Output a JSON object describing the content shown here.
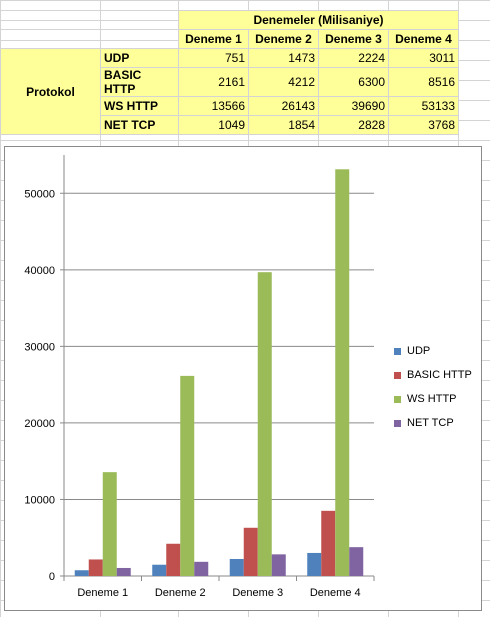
{
  "sheet": {
    "group_header": "Denemeler (Milisaniye)",
    "row_header": "Protokol",
    "columns": [
      "Deneme 1",
      "Deneme 2",
      "Deneme 3",
      "Deneme 4"
    ],
    "rows": [
      {
        "label": "UDP",
        "values": [
          "751",
          "1473",
          "2224",
          "3011"
        ]
      },
      {
        "label": "BASIC HTTP",
        "values": [
          "2161",
          "4212",
          "6300",
          "8516"
        ]
      },
      {
        "label": "WS HTTP",
        "values": [
          "13566",
          "26143",
          "39690",
          "53133"
        ]
      },
      {
        "label": "NET TCP",
        "values": [
          "1049",
          "1854",
          "2828",
          "3768"
        ]
      }
    ]
  },
  "chart_data": {
    "type": "bar",
    "categories": [
      "Deneme 1",
      "Deneme 2",
      "Deneme 3",
      "Deneme 4"
    ],
    "series": [
      {
        "name": "UDP",
        "color": "#4f81bd",
        "values": [
          751,
          1473,
          2224,
          3011
        ]
      },
      {
        "name": "BASIC HTTP",
        "color": "#c0504d",
        "values": [
          2161,
          4212,
          6300,
          8516
        ]
      },
      {
        "name": "WS HTTP",
        "color": "#9bbb59",
        "values": [
          13566,
          26143,
          39690,
          53133
        ]
      },
      {
        "name": "NET TCP",
        "color": "#8064a2",
        "values": [
          1049,
          1854,
          2828,
          3768
        ]
      }
    ],
    "y_ticks": [
      "0",
      "10000",
      "20000",
      "30000",
      "40000",
      "50000"
    ],
    "ylim": [
      0,
      55000
    ],
    "grid": true,
    "legend": "right"
  }
}
